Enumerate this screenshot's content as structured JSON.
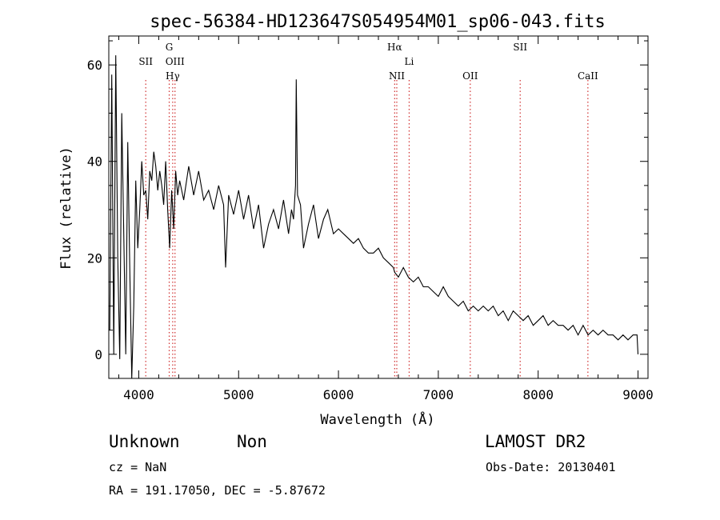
{
  "chart_data": {
    "type": "line",
    "title": "spec-56384-HD123647S054954M01_sp06-043.fits",
    "xlabel": "Wavelength (Å)",
    "ylabel": "Flux (relative)",
    "xlim": [
      3700,
      9100
    ],
    "ylim": [
      -5,
      66
    ],
    "x_ticks": [
      4000,
      5000,
      6000,
      7000,
      8000,
      9000
    ],
    "y_ticks": [
      0,
      20,
      40,
      60
    ],
    "grid": false,
    "line_color": "#000000",
    "marker_color": "#d03030",
    "spectral_lines": [
      {
        "label": "SII",
        "wavelength": 4070
      },
      {
        "label": "G",
        "wavelength": 4305
      },
      {
        "label": "Hγ",
        "wavelength": 4340
      },
      {
        "label": "OIII",
        "wavelength": 4363
      },
      {
        "label": "NII",
        "wavelength": 6584
      },
      {
        "label": "Hα",
        "wavelength": 6563
      },
      {
        "label": "Li",
        "wavelength": 6708
      },
      {
        "label": "OII",
        "wavelength": 7320
      },
      {
        "label": "SII",
        "wavelength": 7820
      },
      {
        "label": "CaII",
        "wavelength": 8498
      }
    ],
    "series": [
      {
        "x": [
          3710,
          3730,
          3750,
          3770,
          3790,
          3810,
          3830,
          3850,
          3870,
          3890,
          3910,
          3930,
          3950,
          3970,
          3990,
          4010,
          4030,
          4050,
          4070,
          4090,
          4110,
          4130,
          4150,
          4170,
          4190,
          4210,
          4230,
          4250,
          4270,
          4290,
          4310,
          4330,
          4350,
          4370,
          4390,
          4410,
          4450,
          4500,
          4550,
          4600,
          4650,
          4700,
          4750,
          4800,
          4850,
          4870,
          4900,
          4950,
          5000,
          5050,
          5100,
          5150,
          5200,
          5250,
          5300,
          5350,
          5400,
          5450,
          5500,
          5530,
          5550,
          5570,
          5577,
          5590,
          5620,
          5650,
          5700,
          5750,
          5800,
          5850,
          5893,
          5950,
          6000,
          6050,
          6100,
          6150,
          6200,
          6250,
          6300,
          6350,
          6400,
          6450,
          6500,
          6550,
          6563,
          6600,
          6650,
          6700,
          6750,
          6800,
          6850,
          6900,
          6950,
          7000,
          7050,
          7100,
          7150,
          7200,
          7250,
          7300,
          7350,
          7400,
          7450,
          7500,
          7550,
          7600,
          7650,
          7700,
          7750,
          7800,
          7850,
          7900,
          7950,
          8000,
          8050,
          8100,
          8150,
          8200,
          8250,
          8300,
          8350,
          8400,
          8450,
          8500,
          8550,
          8600,
          8650,
          8700,
          8750,
          8800,
          8850,
          8900,
          8950,
          8990,
          9000
        ],
        "y": [
          5,
          58,
          0,
          62,
          20,
          -1,
          50,
          25,
          0,
          44,
          18,
          -5,
          10,
          36,
          22,
          30,
          40,
          33,
          34,
          28,
          38,
          36,
          42,
          39,
          34,
          38,
          35,
          31,
          40,
          30,
          22,
          34,
          26,
          38,
          33,
          36,
          32,
          39,
          33,
          38,
          32,
          34,
          30,
          35,
          31,
          18,
          33,
          29,
          34,
          28,
          33,
          26,
          31,
          22,
          27,
          30,
          26,
          32,
          25,
          30,
          28,
          35,
          57,
          33,
          31,
          22,
          27,
          31,
          24,
          28,
          30,
          25,
          26,
          25,
          24,
          23,
          24,
          22,
          21,
          21,
          22,
          20,
          19,
          18,
          17,
          16,
          18,
          16,
          15,
          16,
          14,
          14,
          13,
          12,
          14,
          12,
          11,
          10,
          11,
          9,
          10,
          9,
          10,
          9,
          10,
          8,
          9,
          7,
          9,
          8,
          7,
          8,
          6,
          7,
          8,
          6,
          7,
          6,
          6,
          5,
          6,
          4,
          6,
          4,
          5,
          4,
          5,
          4,
          4,
          3,
          4,
          3,
          4,
          4,
          0
        ]
      }
    ]
  },
  "info": {
    "object_class": "Unknown",
    "subclass": "Non",
    "survey": "LAMOST DR2",
    "redshift": "cz = NaN",
    "obs_date": "Obs-Date: 20130401",
    "coordinates": "RA = 191.17050, DEC =  -5.87672"
  }
}
